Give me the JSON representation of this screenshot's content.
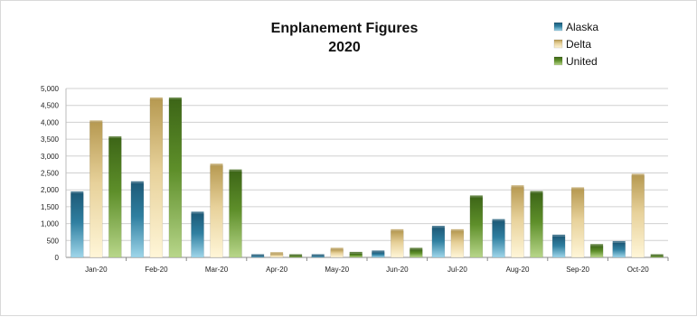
{
  "chart_data": {
    "type": "bar",
    "title": [
      "Enplanement Figures",
      "2020"
    ],
    "categories": [
      "Jan-20",
      "Feb-20",
      "Mar-20",
      "Apr-20",
      "May-20",
      "Jun-20",
      "Jul-20",
      "Aug-20",
      "Sep-20",
      "Oct-20"
    ],
    "series": [
      {
        "name": "Alaska",
        "color": "#2f7fa0",
        "values": [
          1900,
          2200,
          1300,
          30,
          40,
          150,
          880,
          1080,
          620,
          430
        ]
      },
      {
        "name": "Delta",
        "color": "#e9d6a0",
        "values": [
          4000,
          4680,
          2720,
          100,
          230,
          780,
          780,
          2080,
          2020,
          2420
        ]
      },
      {
        "name": "United",
        "color": "#5e8f2a",
        "values": [
          3530,
          4680,
          2550,
          40,
          110,
          230,
          1780,
          1910,
          340,
          20
        ]
      }
    ],
    "yticks": [
      "0",
      "500",
      "1,000",
      "1,500",
      "2,000",
      "2,500",
      "3,000",
      "3,500",
      "4,000",
      "4,500",
      "5,000"
    ],
    "ylim": [
      0,
      5000
    ],
    "xlabel": "",
    "ylabel": "",
    "legend_position": "top-right",
    "grid": true
  }
}
